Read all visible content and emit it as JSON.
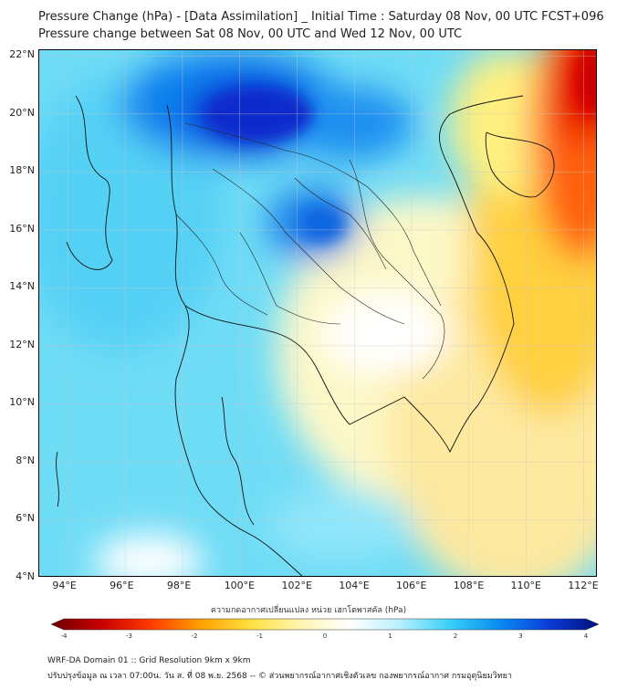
{
  "title": {
    "line1": "Pressure Change (hPa) - [Data Assimilation] _ Initial Time : Saturday 08 Nov, 00 UTC FCST+096",
    "line2": "Pressure change between Sat 08 Nov, 00 UTC and Wed 12 Nov, 00 UTC"
  },
  "map": {
    "lat_ticks": [
      "22°N",
      "20°N",
      "18°N",
      "16°N",
      "14°N",
      "12°N",
      "10°N",
      "8°N",
      "6°N",
      "4°N"
    ],
    "lon_ticks": [
      "94°E",
      "96°E",
      "98°E",
      "100°E",
      "102°E",
      "104°E",
      "106°E",
      "108°E",
      "110°E",
      "112°E"
    ],
    "lat_range": [
      4,
      22.2
    ],
    "lon_range": [
      93,
      112.5
    ]
  },
  "colorbar": {
    "label": "ความกดอากาศเปลี่ยนแปลง หน่วย เฮกโตพาสคัล (hPa)",
    "ticks": [
      "-4",
      "-3",
      "-2",
      "-1",
      "0",
      "1",
      "2",
      "3",
      "4"
    ],
    "colors": [
      "#6b0000",
      "#c80000",
      "#ff3a00",
      "#ffa000",
      "#ffe040",
      "#fff5b0",
      "#ffffff",
      "#b8f0ff",
      "#3ad0f8",
      "#0a8cf0",
      "#0a3cd8",
      "#00107a"
    ]
  },
  "footer": {
    "line1": "WRF-DA Domain 01 :: Grid Resolution 9km x 9km",
    "line2": "ปรับปรุงข้อมูล ณ เวลา 07:00น. วัน ส. ที่ 08 พ.ย. 2568 -- © ส่วนพยากรณ์อากาศเชิงตัวเลข กองพยากรณ์อากาศ กรมอุตุนิยมวิทยา"
  }
}
